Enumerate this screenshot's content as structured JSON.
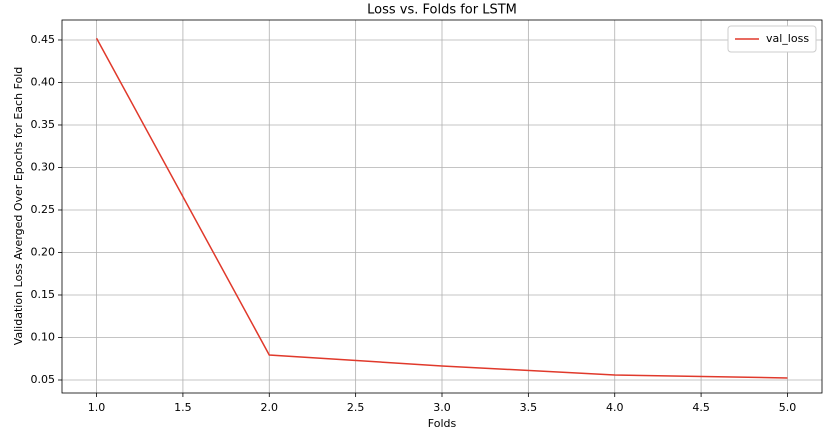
{
  "chart_data": {
    "type": "line",
    "title": "Loss vs. Folds for LSTM",
    "x_label": "Folds",
    "y_label": "Validation Loss Averged Over Epochs for Each Fold",
    "x": [
      1,
      2,
      3,
      4,
      5
    ],
    "series": [
      {
        "name": "val_loss",
        "color": "#e0392b",
        "values": [
          0.452,
          0.0794,
          0.0665,
          0.0559,
          0.0524
        ]
      }
    ],
    "xlim": [
      0.8,
      5.2
    ],
    "xticks": [
      {
        "value": 1,
        "label": "1.0"
      },
      {
        "value": 1.5,
        "label": "1.5"
      },
      {
        "value": 2,
        "label": "2.0"
      },
      {
        "value": 2.5,
        "label": "2.5"
      },
      {
        "value": 3,
        "label": "3.0"
      },
      {
        "value": 3.5,
        "label": "3.5"
      },
      {
        "value": 4,
        "label": "4.0"
      },
      {
        "value": 4.5,
        "label": "4.5"
      },
      {
        "value": 5,
        "label": "5.0"
      }
    ],
    "ylim": [
      0.0347,
      0.4735
    ],
    "yticks": [
      0.05,
      {
        "value": 0.1,
        "label": "0.10"
      },
      0.15,
      {
        "value": 0.2,
        "label": "0.20"
      },
      0.25,
      {
        "value": 0.3,
        "label": "0.30"
      },
      0.35,
      {
        "value": 0.4,
        "label": "0.40"
      },
      0.45
    ],
    "grid": true,
    "legend": "upper right"
  }
}
